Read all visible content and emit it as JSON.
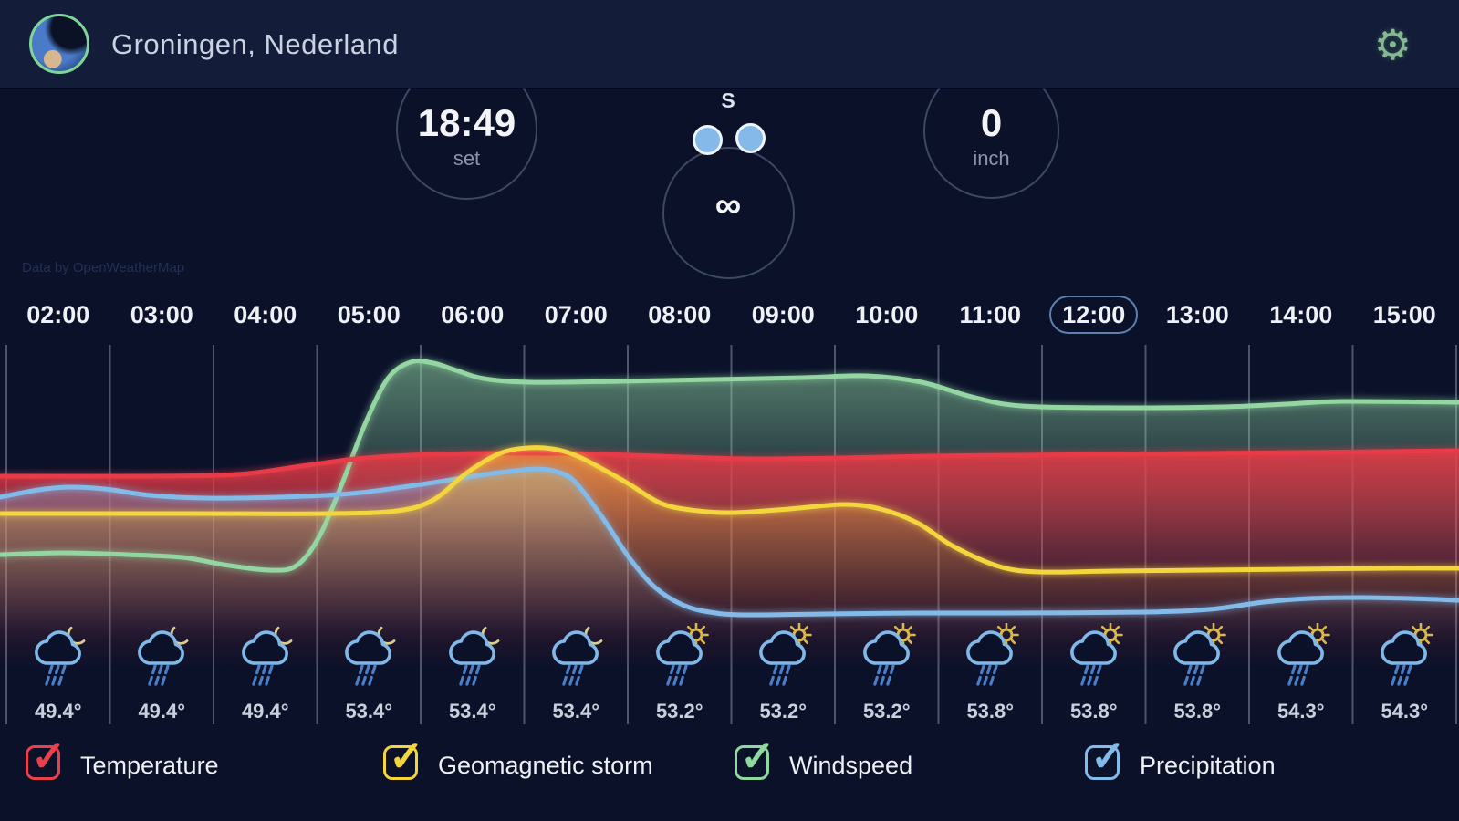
{
  "header": {
    "title": "Groningen, Nederland"
  },
  "gauges": {
    "sunset": {
      "value": "18:49",
      "label": "set"
    },
    "wind": {
      "direction": "S",
      "symbol": "∞"
    },
    "precipitation": {
      "value": "0",
      "unit": "inch"
    }
  },
  "attribution": "Data by OpenWeatherMap",
  "timeline": {
    "hours": [
      "02:00",
      "03:00",
      "04:00",
      "05:00",
      "06:00",
      "07:00",
      "08:00",
      "09:00",
      "10:00",
      "11:00",
      "12:00",
      "13:00",
      "14:00",
      "15:00"
    ],
    "selected": "12:00"
  },
  "chart_data": {
    "type": "line",
    "x_axis": {
      "labels": [
        "02:00",
        "03:00",
        "04:00",
        "05:00",
        "06:00",
        "07:00",
        "08:00",
        "09:00",
        "10:00",
        "11:00",
        "12:00",
        "13:00",
        "14:00",
        "15:00"
      ]
    },
    "y_axis": "unlabeled (stylized smoothed curves, higher = greater value)",
    "grid": "vertical hour gridlines only",
    "legend_position": "bottom",
    "series": [
      {
        "name": "Windspeed",
        "color": "#93d6a2",
        "fill_top_opacity": 0.55,
        "fade": 250,
        "points": [
          [
            0,
            238
          ],
          [
            70,
            236
          ],
          [
            140,
            238
          ],
          [
            200,
            241
          ],
          [
            245,
            249
          ],
          [
            295,
            255
          ],
          [
            325,
            250
          ],
          [
            350,
            218
          ],
          [
            375,
            160
          ],
          [
            400,
            95
          ],
          [
            425,
            45
          ],
          [
            450,
            27
          ],
          [
            475,
            28
          ],
          [
            500,
            36
          ],
          [
            530,
            45
          ],
          [
            580,
            49
          ],
          [
            680,
            48
          ],
          [
            780,
            46
          ],
          [
            880,
            44
          ],
          [
            950,
            42
          ],
          [
            1010,
            49
          ],
          [
            1065,
            65
          ],
          [
            1120,
            75
          ],
          [
            1230,
            77
          ],
          [
            1340,
            76
          ],
          [
            1410,
            73
          ],
          [
            1470,
            70
          ],
          [
            1599,
            71
          ]
        ]
      },
      {
        "name": "Temperature",
        "color": "#e83b46",
        "fill_top_opacity": 0.88,
        "fade": 240,
        "points": [
          [
            0,
            152
          ],
          [
            160,
            152
          ],
          [
            260,
            150
          ],
          [
            330,
            141
          ],
          [
            390,
            133
          ],
          [
            450,
            129
          ],
          [
            530,
            127
          ],
          [
            620,
            127
          ],
          [
            720,
            130
          ],
          [
            820,
            133
          ],
          [
            920,
            132
          ],
          [
            1020,
            130
          ],
          [
            1120,
            129
          ],
          [
            1220,
            128
          ],
          [
            1320,
            127
          ],
          [
            1420,
            126
          ],
          [
            1520,
            125
          ],
          [
            1599,
            124
          ]
        ]
      },
      {
        "name": "Precipitation",
        "color": "#82bbea",
        "fill_top_opacity": 0.42,
        "fade": 190,
        "points": [
          [
            0,
            175
          ],
          [
            42,
            167
          ],
          [
            75,
            164
          ],
          [
            115,
            166
          ],
          [
            165,
            173
          ],
          [
            225,
            176
          ],
          [
            305,
            175
          ],
          [
            385,
            171
          ],
          [
            455,
            162
          ],
          [
            525,
            151
          ],
          [
            565,
            146
          ],
          [
            590,
            144
          ],
          [
            610,
            147
          ],
          [
            630,
            158
          ],
          [
            660,
            197
          ],
          [
            690,
            242
          ],
          [
            718,
            274
          ],
          [
            748,
            293
          ],
          [
            778,
            301
          ],
          [
            815,
            304
          ],
          [
            905,
            303
          ],
          [
            1005,
            302
          ],
          [
            1105,
            302
          ],
          [
            1255,
            301
          ],
          [
            1325,
            298
          ],
          [
            1385,
            290
          ],
          [
            1435,
            286
          ],
          [
            1490,
            285
          ],
          [
            1545,
            286
          ],
          [
            1599,
            288
          ]
        ]
      },
      {
        "name": "Geomagnetic storm",
        "color": "#f3d53c",
        "fill_top_opacity": 0.5,
        "fade": 200,
        "points": [
          [
            0,
            193
          ],
          [
            210,
            193
          ],
          [
            360,
            193
          ],
          [
            435,
            190
          ],
          [
            475,
            178
          ],
          [
            512,
            148
          ],
          [
            548,
            127
          ],
          [
            578,
            121
          ],
          [
            605,
            122
          ],
          [
            635,
            131
          ],
          [
            685,
            158
          ],
          [
            725,
            182
          ],
          [
            765,
            190
          ],
          [
            805,
            192
          ],
          [
            865,
            188
          ],
          [
            925,
            183
          ],
          [
            965,
            188
          ],
          [
            1005,
            203
          ],
          [
            1045,
            229
          ],
          [
            1095,
            251
          ],
          [
            1140,
            257
          ],
          [
            1220,
            256
          ],
          [
            1320,
            255
          ],
          [
            1420,
            254
          ],
          [
            1520,
            253
          ],
          [
            1599,
            253
          ]
        ]
      }
    ]
  },
  "forecast": [
    {
      "time": "02:00",
      "temp": "49.4°",
      "icon": "rain-moon"
    },
    {
      "time": "03:00",
      "temp": "49.4°",
      "icon": "rain-moon"
    },
    {
      "time": "04:00",
      "temp": "49.4°",
      "icon": "rain-moon"
    },
    {
      "time": "05:00",
      "temp": "53.4°",
      "icon": "rain-moon"
    },
    {
      "time": "06:00",
      "temp": "53.4°",
      "icon": "rain-moon"
    },
    {
      "time": "07:00",
      "temp": "53.4°",
      "icon": "rain-moon"
    },
    {
      "time": "08:00",
      "temp": "53.2°",
      "icon": "rain-sun"
    },
    {
      "time": "09:00",
      "temp": "53.2°",
      "icon": "rain-sun"
    },
    {
      "time": "10:00",
      "temp": "53.2°",
      "icon": "rain-sun"
    },
    {
      "time": "11:00",
      "temp": "53.8°",
      "icon": "rain-sun"
    },
    {
      "time": "12:00",
      "temp": "53.8°",
      "icon": "rain-sun"
    },
    {
      "time": "13:00",
      "temp": "53.8°",
      "icon": "rain-sun"
    },
    {
      "time": "14:00",
      "temp": "54.3°",
      "icon": "rain-sun"
    },
    {
      "time": "15:00",
      "temp": "54.3°",
      "icon": "rain-sun"
    }
  ],
  "legend": [
    {
      "label": "Temperature",
      "color": "#e8414b",
      "checked": true
    },
    {
      "label": "Geomagnetic storm",
      "color": "#f3d53c",
      "checked": true
    },
    {
      "label": "Windspeed",
      "color": "#8fd9a0",
      "checked": true
    },
    {
      "label": "Precipitation",
      "color": "#82bbea",
      "checked": true
    }
  ],
  "icon_colors": {
    "cloud": "#7fb9e9",
    "rain": "#4b7ec6",
    "moon": "#d8cd8c",
    "sun": "#d9b84e",
    "check": "✓",
    "checkmark_glyph": "✓"
  }
}
